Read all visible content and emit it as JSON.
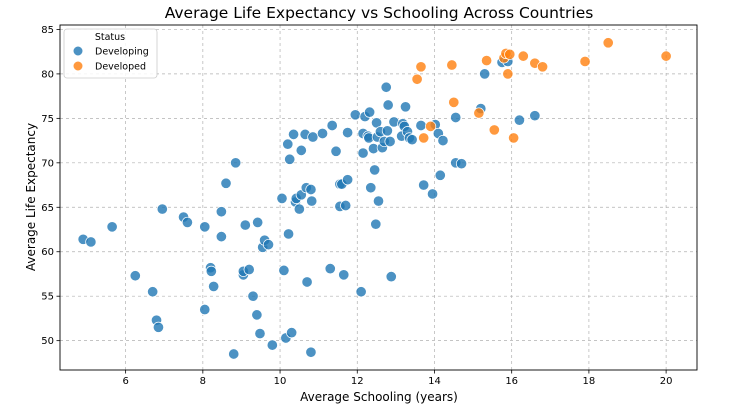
{
  "chart_data": {
    "type": "scatter",
    "title": "Average Life Expectancy vs Schooling Across Countries",
    "xlabel": "Average Schooling (years)",
    "ylabel": "Average Life Expectancy",
    "xlim": [
      4.3,
      20.8
    ],
    "ylim": [
      46.7,
      85.5
    ],
    "xticks": [
      6,
      8,
      10,
      12,
      14,
      16,
      18,
      20
    ],
    "yticks": [
      50,
      55,
      60,
      65,
      70,
      75,
      80,
      85
    ],
    "grid": true,
    "legend": {
      "title": "Status",
      "placement": "top-left",
      "entries": [
        "Developing",
        "Developed"
      ]
    },
    "colors": {
      "Developing": "#1f77b4",
      "Developed": "#ff7f0e"
    },
    "series": [
      {
        "name": "Developing",
        "points": [
          [
            4.9,
            61.4
          ],
          [
            5.1,
            61.1
          ],
          [
            5.65,
            62.8
          ],
          [
            6.25,
            57.3
          ],
          [
            6.7,
            55.5
          ],
          [
            6.8,
            52.3
          ],
          [
            6.85,
            51.5
          ],
          [
            6.95,
            64.8
          ],
          [
            7.5,
            63.9
          ],
          [
            7.6,
            63.3
          ],
          [
            8.05,
            62.8
          ],
          [
            8.05,
            53.5
          ],
          [
            8.2,
            58.2
          ],
          [
            8.22,
            57.8
          ],
          [
            8.28,
            56.1
          ],
          [
            8.48,
            64.5
          ],
          [
            8.48,
            61.7
          ],
          [
            8.6,
            67.7
          ],
          [
            8.8,
            48.5
          ],
          [
            8.85,
            70.0
          ],
          [
            9.05,
            57.4
          ],
          [
            9.05,
            57.8
          ],
          [
            9.1,
            63.0
          ],
          [
            9.2,
            58.0
          ],
          [
            9.3,
            55.0
          ],
          [
            9.4,
            52.9
          ],
          [
            9.42,
            63.3
          ],
          [
            9.48,
            50.8
          ],
          [
            9.55,
            60.5
          ],
          [
            9.6,
            61.3
          ],
          [
            9.7,
            60.8
          ],
          [
            9.8,
            49.5
          ],
          [
            10.05,
            66.0
          ],
          [
            10.1,
            57.9
          ],
          [
            10.15,
            50.3
          ],
          [
            10.2,
            72.1
          ],
          [
            10.22,
            62.0
          ],
          [
            10.25,
            70.4
          ],
          [
            10.3,
            50.9
          ],
          [
            10.35,
            73.2
          ],
          [
            10.4,
            65.6
          ],
          [
            10.42,
            66.0
          ],
          [
            10.5,
            64.8
          ],
          [
            10.55,
            71.4
          ],
          [
            10.55,
            66.4
          ],
          [
            10.65,
            73.2
          ],
          [
            10.68,
            67.2
          ],
          [
            10.7,
            56.6
          ],
          [
            10.8,
            48.7
          ],
          [
            10.8,
            67.0
          ],
          [
            10.82,
            65.7
          ],
          [
            10.85,
            72.9
          ],
          [
            11.1,
            73.3
          ],
          [
            11.3,
            58.1
          ],
          [
            11.35,
            74.2
          ],
          [
            11.45,
            71.3
          ],
          [
            11.55,
            65.1
          ],
          [
            11.55,
            67.6
          ],
          [
            11.6,
            67.6
          ],
          [
            11.65,
            57.4
          ],
          [
            11.7,
            65.2
          ],
          [
            11.75,
            68.1
          ],
          [
            11.75,
            73.4
          ],
          [
            11.95,
            75.4
          ],
          [
            12.1,
            55.5
          ],
          [
            12.15,
            71.1
          ],
          [
            12.15,
            73.3
          ],
          [
            12.2,
            75.2
          ],
          [
            12.28,
            73.0
          ],
          [
            12.3,
            72.8
          ],
          [
            12.32,
            75.7
          ],
          [
            12.35,
            67.2
          ],
          [
            12.42,
            71.6
          ],
          [
            12.45,
            69.2
          ],
          [
            12.48,
            63.1
          ],
          [
            12.5,
            74.5
          ],
          [
            12.52,
            72.9
          ],
          [
            12.55,
            65.7
          ],
          [
            12.6,
            73.5
          ],
          [
            12.65,
            71.7
          ],
          [
            12.7,
            72.4
          ],
          [
            12.75,
            78.5
          ],
          [
            12.78,
            73.6
          ],
          [
            12.8,
            76.5
          ],
          [
            12.85,
            72.4
          ],
          [
            12.88,
            57.2
          ],
          [
            12.95,
            74.6
          ],
          [
            13.15,
            73.0
          ],
          [
            13.18,
            74.4
          ],
          [
            13.22,
            74.1
          ],
          [
            13.25,
            76.3
          ],
          [
            13.3,
            73.5
          ],
          [
            13.35,
            72.8
          ],
          [
            13.42,
            72.6
          ],
          [
            13.65,
            74.2
          ],
          [
            13.72,
            67.5
          ],
          [
            13.95,
            66.5
          ],
          [
            14.02,
            74.3
          ],
          [
            14.1,
            73.3
          ],
          [
            14.15,
            68.6
          ],
          [
            14.22,
            72.5
          ],
          [
            14.55,
            75.1
          ],
          [
            14.55,
            70.0
          ],
          [
            14.7,
            69.9
          ],
          [
            15.2,
            76.1
          ],
          [
            15.3,
            80.0
          ],
          [
            15.75,
            81.3
          ],
          [
            15.9,
            81.4
          ],
          [
            16.2,
            74.8
          ],
          [
            16.6,
            75.3
          ]
        ]
      },
      {
        "name": "Developed",
        "points": [
          [
            13.55,
            79.4
          ],
          [
            13.65,
            80.8
          ],
          [
            13.72,
            72.8
          ],
          [
            13.9,
            74.1
          ],
          [
            14.45,
            81.0
          ],
          [
            14.5,
            76.8
          ],
          [
            15.15,
            75.6
          ],
          [
            15.35,
            81.5
          ],
          [
            15.55,
            73.7
          ],
          [
            15.8,
            81.8
          ],
          [
            15.85,
            82.3
          ],
          [
            15.9,
            80.0
          ],
          [
            15.95,
            82.2
          ],
          [
            16.05,
            72.8
          ],
          [
            16.3,
            82.0
          ],
          [
            16.6,
            81.2
          ],
          [
            16.8,
            80.8
          ],
          [
            17.9,
            81.4
          ],
          [
            18.5,
            83.5
          ],
          [
            20.0,
            82.0
          ]
        ]
      }
    ]
  }
}
